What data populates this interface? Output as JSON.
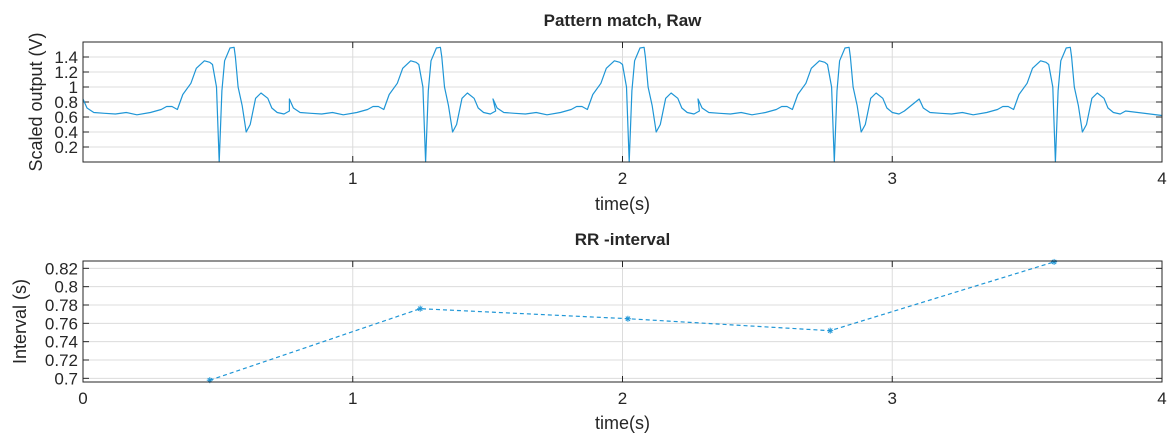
{
  "colors": {
    "trace": "#1f96d6",
    "axis": "#262626",
    "grid": "#dcdcdc"
  },
  "chart_data": [
    {
      "type": "line",
      "title": "Pattern match, Raw",
      "xlabel": "time(s)",
      "ylabel": "Scaled output (V)",
      "xlim": [
        0,
        4
      ],
      "ylim": [
        0,
        1.6
      ],
      "xticks": [
        1,
        2,
        3,
        4
      ],
      "xtick_labels": [
        "1",
        "2",
        "3",
        "4"
      ],
      "yticks": [
        0.2,
        0.4,
        0.6,
        0.8,
        1,
        1.2,
        1.4
      ],
      "ytick_labels": [
        "0.2",
        "0.4",
        "0.6",
        "0.8",
        "1",
        "1.2",
        "1.4"
      ],
      "grid": true,
      "series": [
        {
          "line_style": "solid",
          "beats_start_s": [
            0.0,
            0.765,
            1.52,
            2.28,
            3.1
          ],
          "x": [
            0,
            0.015,
            0.04,
            0.08,
            0.12,
            0.16,
            0.2,
            0.25,
            0.29,
            0.31,
            0.33,
            0.35,
            0.37,
            0.4,
            0.42,
            0.45,
            0.47,
            0.48,
            0.495,
            0.505,
            0.515,
            0.525,
            0.545,
            0.56,
            0.565,
            0.575,
            0.59,
            0.605,
            0.62,
            0.64,
            0.66,
            0.685,
            0.7,
            0.72,
            0.745,
            0.765
          ],
          "y": [
            0.84,
            0.72,
            0.66,
            0.65,
            0.64,
            0.66,
            0.63,
            0.66,
            0.7,
            0.74,
            0.74,
            0.7,
            0.9,
            1.05,
            1.25,
            1.35,
            1.33,
            1.3,
            1.0,
            0.0,
            0.95,
            1.35,
            1.52,
            1.53,
            1.4,
            1.0,
            0.75,
            0.4,
            0.5,
            0.85,
            0.92,
            0.85,
            0.72,
            0.66,
            0.64,
            0.68
          ]
        }
      ]
    },
    {
      "type": "line",
      "title": "RR -interval",
      "xlabel": "time(s)",
      "ylabel": "Interval (s)",
      "xlim": [
        0,
        4
      ],
      "ylim": [
        0.696,
        0.828
      ],
      "xticks": [
        0,
        1,
        2,
        3,
        4
      ],
      "xtick_labels": [
        "0",
        "1",
        "2",
        "3",
        "4"
      ],
      "yticks": [
        0.7,
        0.72,
        0.74,
        0.76,
        0.78,
        0.8,
        0.82
      ],
      "ytick_labels": [
        "0.7",
        "0.72",
        "0.74",
        "0.76",
        "0.78",
        "0.8",
        "0.82"
      ],
      "grid": true,
      "series": [
        {
          "line_style": "dashed",
          "marker": "asterisk",
          "x": [
            0.47,
            1.25,
            2.02,
            2.77,
            3.6
          ],
          "y": [
            0.698,
            0.776,
            0.765,
            0.752,
            0.827
          ]
        }
      ]
    }
  ]
}
